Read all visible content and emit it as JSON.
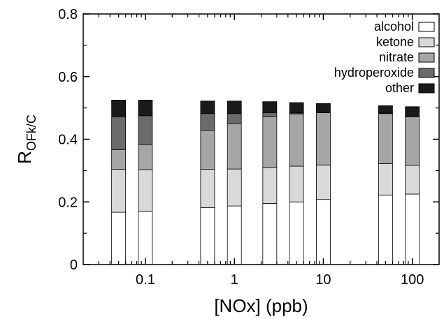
{
  "chart_data": {
    "type": "bar",
    "stacked": true,
    "x_scale": "log",
    "xlim": [
      0.02,
      200
    ],
    "ylim": [
      0,
      0.8
    ],
    "xlabel": "[NOx] (ppb)",
    "ylabel_main": "R",
    "ylabel_sub": "OFk/C",
    "x_ticks": [
      {
        "value": 0.1,
        "label": "0.1"
      },
      {
        "value": 1,
        "label": "1"
      },
      {
        "value": 10,
        "label": "10"
      },
      {
        "value": 100,
        "label": "100"
      }
    ],
    "y_ticks": [
      {
        "value": 0,
        "label": "0"
      },
      {
        "value": 0.2,
        "label": "0.2"
      },
      {
        "value": 0.4,
        "label": "0.4"
      },
      {
        "value": 0.6,
        "label": "0.6"
      },
      {
        "value": 0.8,
        "label": "0.8"
      }
    ],
    "x": [
      0.05,
      0.1,
      0.5,
      1,
      2.5,
      5,
      10,
      50,
      100
    ],
    "series": [
      {
        "name": "alcohol",
        "color": "#ffffff",
        "values": [
          0.167,
          0.17,
          0.182,
          0.187,
          0.195,
          0.2,
          0.208,
          0.222,
          0.225
        ]
      },
      {
        "name": "ketone",
        "color": "#d9d9d9",
        "values": [
          0.137,
          0.133,
          0.122,
          0.118,
          0.115,
          0.114,
          0.11,
          0.1,
          0.092
        ]
      },
      {
        "name": "nitrate",
        "color": "#a6a6a6",
        "values": [
          0.063,
          0.08,
          0.125,
          0.145,
          0.163,
          0.167,
          0.167,
          0.16,
          0.155
        ]
      },
      {
        "name": "hydroperoxide",
        "color": "#6b6b6b",
        "values": [
          0.105,
          0.092,
          0.053,
          0.032,
          0.012,
          0.003,
          0.002,
          0.002,
          0.002
        ]
      },
      {
        "name": "other",
        "color": "#1a1a1a",
        "values": [
          0.053,
          0.05,
          0.04,
          0.04,
          0.035,
          0.033,
          0.027,
          0.023,
          0.03
        ]
      }
    ],
    "legend_position": "top-right",
    "grid": false
  }
}
